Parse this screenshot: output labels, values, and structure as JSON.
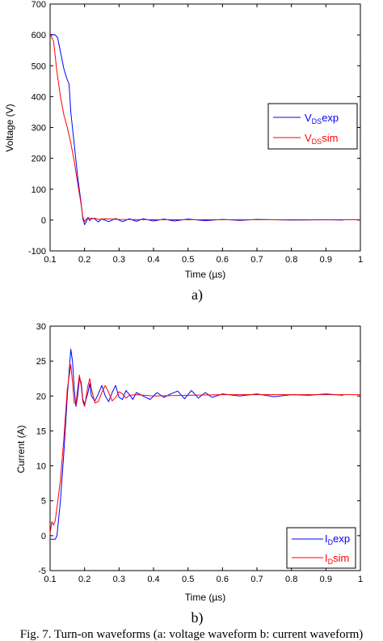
{
  "chart_data": [
    {
      "type": "line",
      "panel_label": "a)",
      "xlabel": "Time (µs)",
      "ylabel": "Voltage (V)",
      "xlim": [
        0.1,
        1.0
      ],
      "ylim": [
        -100,
        700
      ],
      "xticks": [
        "0.1",
        "0.2",
        "0.3",
        "0.4",
        "0.5",
        "0.6",
        "0.7",
        "0.8",
        "0.9",
        "1"
      ],
      "yticks": [
        "-100",
        "0",
        "100",
        "200",
        "300",
        "400",
        "500",
        "600",
        "700"
      ],
      "grid": false,
      "legend_position": "right",
      "series": [
        {
          "name_main": "V",
          "name_sub": "DS",
          "name_suffix": "exp",
          "color": "#0000ff",
          "points": [
            [
              0.1,
              602
            ],
            [
              0.115,
              600
            ],
            [
              0.122,
              590
            ],
            [
              0.13,
              545
            ],
            [
              0.14,
              490
            ],
            [
              0.148,
              460
            ],
            [
              0.155,
              440
            ],
            [
              0.16,
              350
            ],
            [
              0.17,
              245
            ],
            [
              0.18,
              140
            ],
            [
              0.19,
              55
            ],
            [
              0.195,
              5
            ],
            [
              0.2,
              -15
            ],
            [
              0.205,
              -5
            ],
            [
              0.21,
              8
            ],
            [
              0.215,
              -2
            ],
            [
              0.22,
              6
            ],
            [
              0.23,
              3
            ],
            [
              0.24,
              -6
            ],
            [
              0.25,
              4
            ],
            [
              0.27,
              -5
            ],
            [
              0.29,
              5
            ],
            [
              0.31,
              -5
            ],
            [
              0.33,
              4
            ],
            [
              0.35,
              -4
            ],
            [
              0.37,
              4
            ],
            [
              0.4,
              -3
            ],
            [
              0.43,
              3
            ],
            [
              0.46,
              -3
            ],
            [
              0.5,
              3
            ],
            [
              0.55,
              -2
            ],
            [
              0.6,
              2
            ],
            [
              0.65,
              -1
            ],
            [
              0.7,
              2
            ],
            [
              0.8,
              0
            ],
            [
              0.9,
              1
            ],
            [
              0.95,
              0
            ]
          ]
        },
        {
          "name_main": "V",
          "name_sub": "DS",
          "name_suffix": "sim",
          "color": "#ff0000",
          "points": [
            [
              0.1,
              602
            ],
            [
              0.11,
              580
            ],
            [
              0.12,
              480
            ],
            [
              0.13,
              400
            ],
            [
              0.14,
              340
            ],
            [
              0.15,
              300
            ],
            [
              0.16,
              250
            ],
            [
              0.17,
              190
            ],
            [
              0.18,
              120
            ],
            [
              0.19,
              50
            ],
            [
              0.195,
              10
            ],
            [
              0.2,
              -5
            ],
            [
              0.205,
              3
            ],
            [
              0.21,
              8
            ],
            [
              0.22,
              3
            ],
            [
              0.23,
              6
            ],
            [
              0.24,
              2
            ],
            [
              0.26,
              4
            ],
            [
              0.3,
              2
            ],
            [
              0.4,
              1
            ],
            [
              0.6,
              1
            ],
            [
              0.8,
              1
            ],
            [
              1.0,
              1
            ]
          ]
        }
      ]
    },
    {
      "type": "line",
      "panel_label": "b)",
      "xlabel": "Time (µs)",
      "ylabel": "Current (A)",
      "xlim": [
        0.1,
        1.0
      ],
      "ylim": [
        -5,
        30
      ],
      "xticks": [
        "0.1",
        "0.2",
        "0.3",
        "0.4",
        "0.5",
        "0.6",
        "0.7",
        "0.8",
        "0.9",
        "1"
      ],
      "yticks": [
        "-5",
        "0",
        "5",
        "10",
        "15",
        "20",
        "25",
        "30"
      ],
      "grid": false,
      "legend_position": "bottom-right",
      "series": [
        {
          "name_main": "I",
          "name_sub": "D",
          "name_suffix": "exp",
          "color": "#0000ff",
          "points": [
            [
              0.1,
              -0.5
            ],
            [
              0.115,
              -0.5
            ],
            [
              0.12,
              0
            ],
            [
              0.13,
              5
            ],
            [
              0.14,
              12
            ],
            [
              0.15,
              20
            ],
            [
              0.16,
              26.7
            ],
            [
              0.165,
              25
            ],
            [
              0.17,
              21
            ],
            [
              0.175,
              18.5
            ],
            [
              0.18,
              20
            ],
            [
              0.185,
              22.5
            ],
            [
              0.19,
              22
            ],
            [
              0.195,
              19.5
            ],
            [
              0.2,
              18.8
            ],
            [
              0.21,
              20.5
            ],
            [
              0.215,
              21.8
            ],
            [
              0.22,
              20
            ],
            [
              0.23,
              19.3
            ],
            [
              0.24,
              20.3
            ],
            [
              0.25,
              21.5
            ],
            [
              0.26,
              20
            ],
            [
              0.27,
              19.2
            ],
            [
              0.28,
              20.5
            ],
            [
              0.29,
              21.5
            ],
            [
              0.3,
              19.8
            ],
            [
              0.31,
              19.5
            ],
            [
              0.32,
              20.8
            ],
            [
              0.33,
              20.2
            ],
            [
              0.34,
              19.5
            ],
            [
              0.35,
              20.5
            ],
            [
              0.37,
              20
            ],
            [
              0.39,
              19.5
            ],
            [
              0.41,
              20.5
            ],
            [
              0.43,
              19.8
            ],
            [
              0.45,
              20.3
            ],
            [
              0.47,
              20.7
            ],
            [
              0.49,
              19.6
            ],
            [
              0.51,
              20.8
            ],
            [
              0.53,
              19.7
            ],
            [
              0.55,
              20.5
            ],
            [
              0.57,
              19.8
            ],
            [
              0.6,
              20.3
            ],
            [
              0.65,
              20
            ],
            [
              0.7,
              20.3
            ],
            [
              0.75,
              19.9
            ],
            [
              0.8,
              20.2
            ],
            [
              0.85,
              20.1
            ],
            [
              0.9,
              20.3
            ],
            [
              0.95,
              20.1
            ]
          ]
        },
        {
          "name_main": "I",
          "name_sub": "D",
          "name_suffix": "sim",
          "color": "#ff0000",
          "points": [
            [
              0.1,
              0.3
            ],
            [
              0.105,
              2
            ],
            [
              0.11,
              1.5
            ],
            [
              0.115,
              2.2
            ],
            [
              0.12,
              4
            ],
            [
              0.13,
              8
            ],
            [
              0.14,
              14
            ],
            [
              0.15,
              21
            ],
            [
              0.16,
              24.5
            ],
            [
              0.165,
              22
            ],
            [
              0.17,
              19
            ],
            [
              0.175,
              18.8
            ],
            [
              0.18,
              21
            ],
            [
              0.185,
              23
            ],
            [
              0.19,
              21.5
            ],
            [
              0.195,
              19.2
            ],
            [
              0.2,
              18.5
            ],
            [
              0.205,
              20
            ],
            [
              0.21,
              21.5
            ],
            [
              0.215,
              22.5
            ],
            [
              0.22,
              21
            ],
            [
              0.23,
              19
            ],
            [
              0.24,
              19.2
            ],
            [
              0.25,
              20.5
            ],
            [
              0.26,
              21.5
            ],
            [
              0.27,
              20.5
            ],
            [
              0.28,
              19.3
            ],
            [
              0.29,
              19.8
            ],
            [
              0.3,
              20.6
            ],
            [
              0.31,
              20.3
            ],
            [
              0.32,
              19.7
            ],
            [
              0.33,
              20.1
            ],
            [
              0.35,
              20.2
            ],
            [
              0.4,
              20
            ],
            [
              0.5,
              20.1
            ],
            [
              0.6,
              20.2
            ],
            [
              0.7,
              20.2
            ],
            [
              0.8,
              20.2
            ],
            [
              0.9,
              20.2
            ],
            [
              1.0,
              20.2
            ]
          ]
        }
      ]
    }
  ],
  "caption": "Fig. 7.  Turn-on waveforms (a: voltage waveform b: current waveform)"
}
